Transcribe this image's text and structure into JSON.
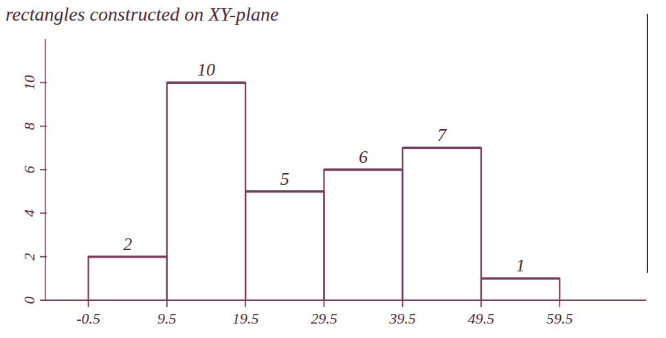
{
  "chart_data": {
    "type": "histogram",
    "title": "rectangles constructed on XY-plane",
    "bins": [
      -0.5,
      9.5,
      19.5,
      29.5,
      39.5,
      49.5,
      59.5
    ],
    "values": [
      2,
      10,
      5,
      6,
      7,
      1
    ],
    "color": "#7b3b5e",
    "xlim": [
      -6.5,
      70.5
    ],
    "xticks": [
      -0.5,
      9.5,
      19.5,
      29.5,
      39.5,
      49.5,
      59.5
    ],
    "ylim": [
      0,
      12
    ],
    "yticks": [
      0,
      2,
      4,
      6,
      8,
      10
    ],
    "data_labels": true,
    "grid": false
  }
}
